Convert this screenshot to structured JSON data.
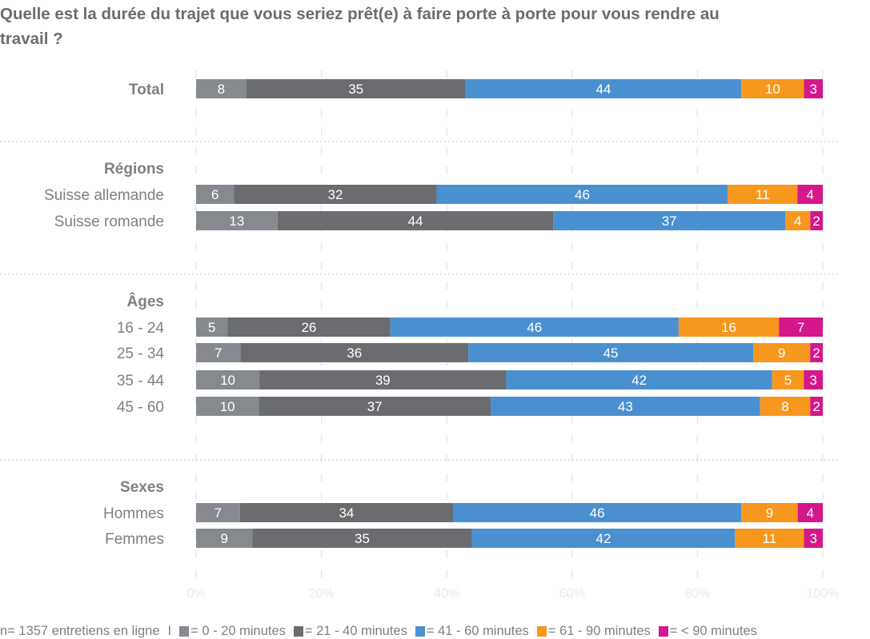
{
  "title": "Quelle est la durée du trajet que vous seriez prêt(e) à faire porte à porte pour vous rendre au travail ?",
  "footer": {
    "sample_note": "n= 1357 entretiens en ligne",
    "separator": "I"
  },
  "colors": {
    "0-20": "#868a8e",
    "21-40": "#6b6c70",
    "41-60": "#4a90d1",
    "61-90": "#f7971e",
    "<90": "#d4178a",
    "gridline": "#e6e7e9",
    "separator": "#d9dadc"
  },
  "chart_data": {
    "type": "bar",
    "orientation": "horizontal",
    "stacked": true,
    "title": "Quelle est la durée du trajet que vous seriez prêt(e) à faire porte à porte pour vous rendre au travail ?",
    "xlabel": "",
    "ylabel": "",
    "xlim": [
      0,
      100
    ],
    "x_ticks": [
      "0%",
      "20%",
      "40%",
      "60%",
      "80%",
      "100%"
    ],
    "grid": true,
    "legend_position": "bottom",
    "series": [
      {
        "key": "0-20",
        "name": "= 0 - 20 minutes"
      },
      {
        "key": "21-40",
        "name": "= 21 - 40 minutes"
      },
      {
        "key": "41-60",
        "name": "= 41 - 60 minutes"
      },
      {
        "key": "61-90",
        "name": "= 61 - 90 minutes"
      },
      {
        "key": "<90",
        "name": "= < 90 minutes"
      }
    ],
    "groups": [
      {
        "label": "",
        "rows": [
          {
            "label": "Total",
            "bold": true,
            "values": [
              8,
              35,
              44,
              10,
              3
            ]
          }
        ]
      },
      {
        "label": "Régions",
        "rows": [
          {
            "label": "Suisse allemande",
            "values": [
              6,
              32,
              46,
              11,
              4
            ]
          },
          {
            "label": "Suisse romande",
            "values": [
              13,
              44,
              37,
              4,
              2
            ]
          }
        ]
      },
      {
        "label": "Âges",
        "rows": [
          {
            "label": "16 - 24",
            "values": [
              5,
              26,
              46,
              16,
              7
            ]
          },
          {
            "label": "25 - 34",
            "values": [
              7,
              36,
              45,
              9,
              2
            ]
          },
          {
            "label": "35 - 44",
            "values": [
              10,
              39,
              42,
              5,
              3
            ]
          },
          {
            "label": "45 - 60",
            "values": [
              10,
              37,
              43,
              8,
              2
            ]
          }
        ]
      },
      {
        "label": "Sexes",
        "rows": [
          {
            "label": "Hommes",
            "values": [
              7,
              34,
              46,
              9,
              4
            ]
          },
          {
            "label": "Femmes",
            "values": [
              9,
              35,
              42,
              11,
              3
            ]
          }
        ]
      }
    ]
  }
}
